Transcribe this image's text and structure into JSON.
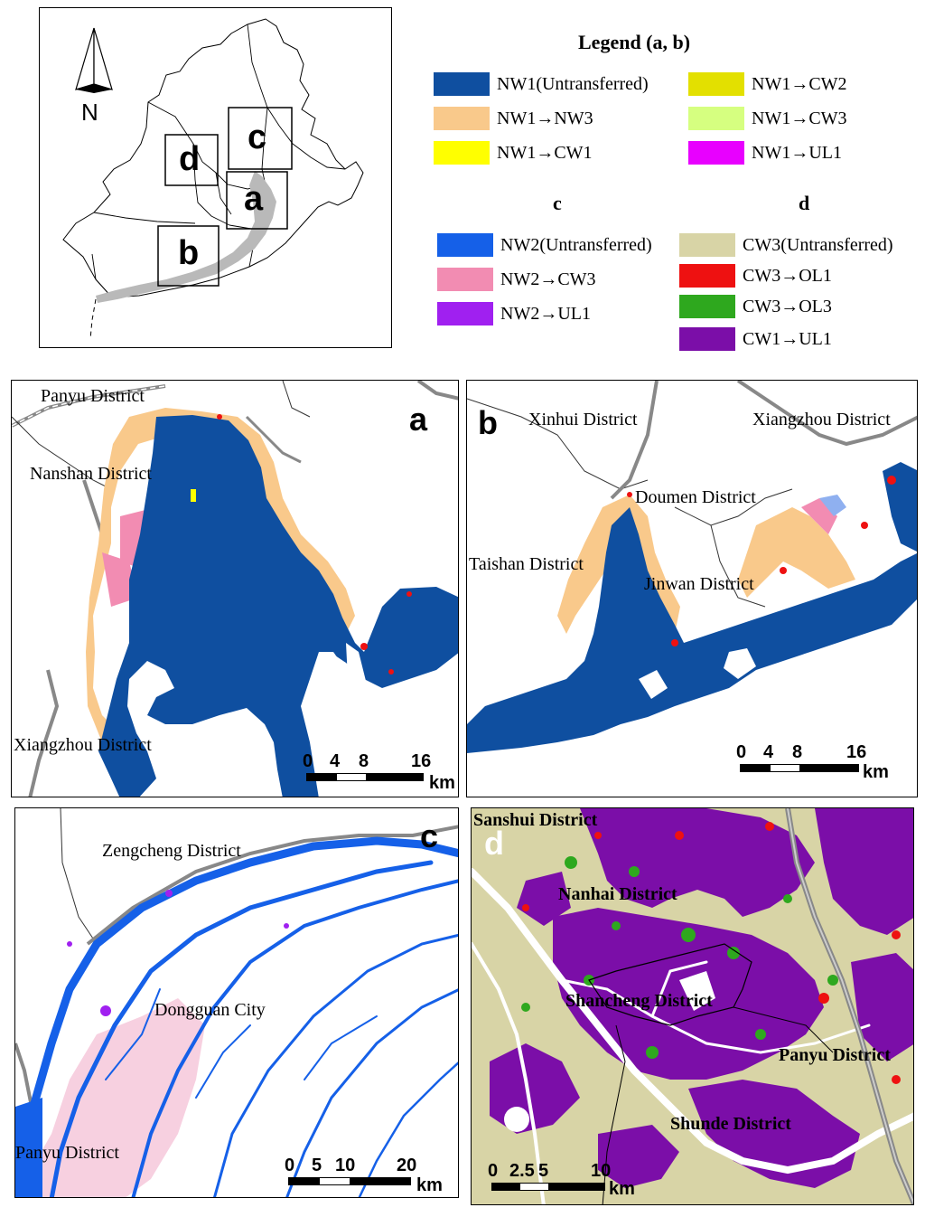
{
  "overview": {
    "north_label": "N",
    "boxes": [
      {
        "id": "box-c",
        "label": "c"
      },
      {
        "id": "box-d",
        "label": "d"
      },
      {
        "id": "box-a",
        "label": "a"
      },
      {
        "id": "box-b",
        "label": "b"
      }
    ]
  },
  "legend": {
    "title": "Legend (a, b)",
    "ab_items": [
      {
        "label": "NW1(Untransferred)",
        "color": "#0f4fa0"
      },
      {
        "label": "NW1→NW3",
        "color": "#f9c98b"
      },
      {
        "label": "NW1→CW1",
        "color": "#ffff00"
      },
      {
        "label": "NW1→CW2",
        "color": "#e3e000"
      },
      {
        "label": "NW1→CW3",
        "color": "#d6ff80"
      },
      {
        "label": "NW1→UL1",
        "color": "#e800ff"
      }
    ],
    "c_header": "c",
    "c_items": [
      {
        "label": "NW2(Untransferred)",
        "color": "#1560e8"
      },
      {
        "label": "NW2→CW3",
        "color": "#f28cb2"
      },
      {
        "label": "NW2→UL1",
        "color": "#a020f0"
      }
    ],
    "d_header": "d",
    "d_items": [
      {
        "label": "CW3(Untransferred)",
        "color": "#d8d4a6"
      },
      {
        "label": "CW3→OL1",
        "color": "#ee1111"
      },
      {
        "label": "CW3→OL3",
        "color": "#2ea81e"
      },
      {
        "label": "CW1→UL1",
        "color": "#7b0ea8"
      }
    ]
  },
  "panel_a": {
    "letter": "a",
    "districts": [
      "Panyu District",
      "Nanshan District",
      "Xiangzhou District"
    ],
    "scale": {
      "ticks": [
        "0",
        "4",
        "8",
        "16"
      ],
      "unit": "km"
    }
  },
  "panel_b": {
    "letter": "b",
    "districts": [
      "Xinhui District",
      "Xiangzhou District",
      "Doumen District",
      "Taishan District",
      "Jinwan District"
    ],
    "scale": {
      "ticks": [
        "0",
        "4",
        "8",
        "16"
      ],
      "unit": "km"
    }
  },
  "panel_c": {
    "letter": "c",
    "districts": [
      "Zengcheng District",
      "Dongguan City",
      "Panyu District"
    ],
    "scale": {
      "ticks": [
        "0",
        "5",
        "10",
        "20"
      ],
      "unit": "km"
    }
  },
  "panel_d": {
    "letter": "d",
    "districts": [
      "Sanshui District",
      "Nanhai District",
      "Shancheng District",
      "Panyu District",
      "Shunde District"
    ],
    "scale": {
      "ticks": [
        "0",
        "2.5",
        "5",
        "10"
      ],
      "unit": "km"
    }
  }
}
